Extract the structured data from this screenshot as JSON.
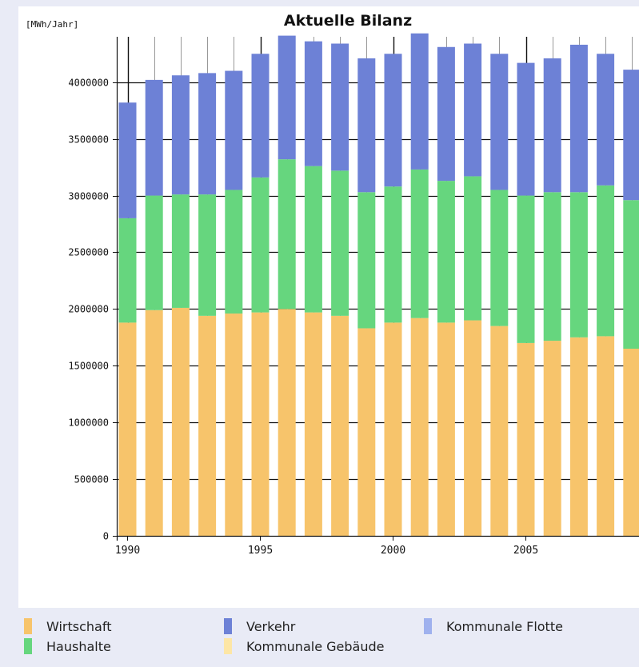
{
  "chart_data": {
    "type": "bar",
    "stacked": true,
    "title": "Aktuelle Bilanz",
    "ylabel": "[MWh/Jahr]",
    "xlabel": "",
    "ylim": [
      0,
      4400000
    ],
    "yticks": [
      0,
      500000,
      1000000,
      1500000,
      2000000,
      2500000,
      3000000,
      3500000,
      4000000
    ],
    "xtick_labels": [
      "1990",
      "1995",
      "2000",
      "2005"
    ],
    "xtick_years": [
      1990,
      1995,
      2000,
      2005
    ],
    "grid": true,
    "legend_position": "bottom",
    "categories": [
      1990,
      1991,
      1992,
      1993,
      1994,
      1995,
      1996,
      1997,
      1998,
      1999,
      2000,
      2001,
      2002,
      2003,
      2004,
      2005,
      2006,
      2007,
      2008,
      2009
    ],
    "series": [
      {
        "name": "Wirtschaft",
        "color": "#f7c46b",
        "values": [
          1880000,
          1990000,
          2010000,
          1940000,
          1960000,
          1970000,
          2000000,
          1970000,
          1940000,
          1830000,
          1880000,
          1920000,
          1880000,
          1900000,
          1850000,
          1700000,
          1720000,
          1750000,
          1760000,
          1650000
        ]
      },
      {
        "name": "Haushalte",
        "color": "#66d67e",
        "values": [
          920000,
          1010000,
          1000000,
          1070000,
          1090000,
          1190000,
          1320000,
          1290000,
          1280000,
          1200000,
          1200000,
          1310000,
          1250000,
          1270000,
          1200000,
          1300000,
          1310000,
          1280000,
          1330000,
          1310000
        ]
      },
      {
        "name": "Verkehr",
        "color": "#6d81d6",
        "values": [
          1020000,
          1020000,
          1050000,
          1070000,
          1050000,
          1090000,
          1090000,
          1100000,
          1120000,
          1180000,
          1170000,
          1200000,
          1180000,
          1170000,
          1200000,
          1170000,
          1180000,
          1300000,
          1160000,
          1150000
        ]
      },
      {
        "name": "Kommunale Gebäude",
        "color": "#fde6a6",
        "values": [
          0,
          0,
          0,
          0,
          0,
          0,
          0,
          0,
          0,
          0,
          0,
          0,
          0,
          0,
          0,
          0,
          0,
          0,
          0,
          0
        ]
      },
      {
        "name": "Kommunale Flotte",
        "color": "#9fb1ee",
        "values": [
          0,
          0,
          0,
          0,
          0,
          0,
          0,
          0,
          0,
          0,
          0,
          0,
          0,
          0,
          0,
          0,
          0,
          0,
          0,
          0
        ]
      }
    ]
  },
  "legend": {
    "items": [
      {
        "label": "Wirtschaft",
        "color": "#f7c46b"
      },
      {
        "label": "Haushalte",
        "color": "#66d67e"
      },
      {
        "label": "Verkehr",
        "color": "#6d81d6"
      },
      {
        "label": "Kommunale Gebäude",
        "color": "#fde6a6"
      },
      {
        "label": "Kommunale Flotte",
        "color": "#9fb1ee"
      }
    ]
  }
}
